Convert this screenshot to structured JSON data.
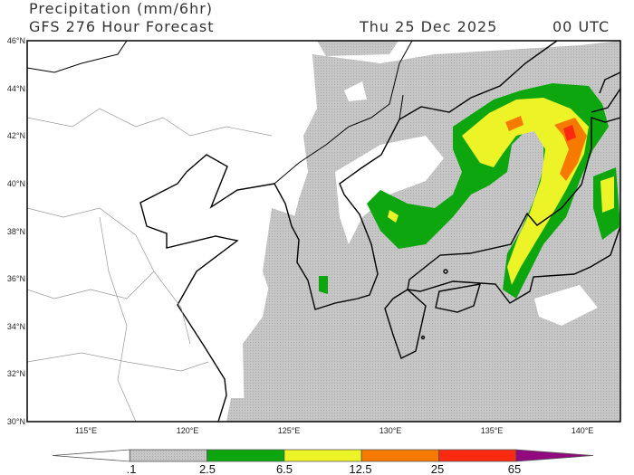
{
  "header": {
    "title": "Precipitation (mm/6hr)",
    "subtitle": "GFS 276 Hour Forecast",
    "date": "Thu 25 Dec 2025",
    "time": "00 UTC"
  },
  "map": {
    "lat_labels": [
      "46°N",
      "44°N",
      "42°N",
      "40°N",
      "38°N",
      "36°N",
      "34°N",
      "32°N",
      "30°N"
    ],
    "lon_labels": [
      "115°E",
      "120°E",
      "125°E",
      "130°E",
      "135°E",
      "140°E"
    ],
    "extent": {
      "lon": [
        112,
        141.3
      ],
      "lat": [
        30,
        46
      ]
    }
  },
  "legend": {
    "labels": [
      ".1",
      "2.5",
      "6.5",
      "12.5",
      "25",
      "65"
    ],
    "colors": [
      "#ffffff",
      "#c8c8c8",
      "#0ea60e",
      "#ecf428",
      "#f77a00",
      "#fa2a10",
      "#92087e"
    ]
  }
}
